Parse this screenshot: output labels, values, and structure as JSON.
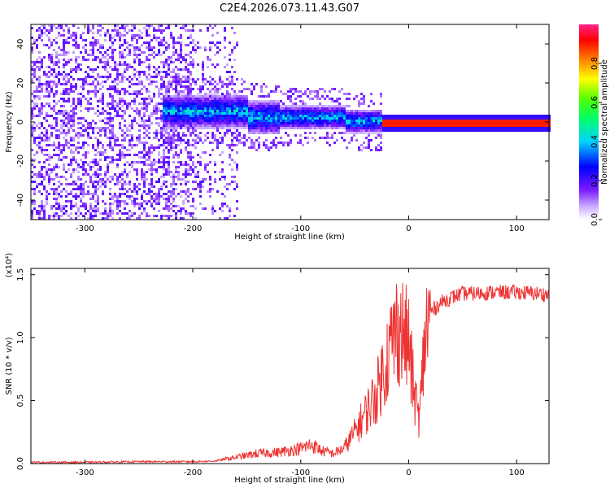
{
  "title": "C2E4.2026.073.11.43.G07",
  "chart_data": [
    {
      "type": "heatmap",
      "name": "spectrogram",
      "xlabel": "Height of straight line (km)",
      "ylabel": "Frequency (Hz)",
      "xlim": [
        -350,
        130
      ],
      "ylim": [
        -50,
        50
      ],
      "xticks": [
        -300,
        -200,
        -100,
        0,
        100
      ],
      "xtick_labels": [
        "-300",
        "-200",
        "-100",
        "0",
        "100"
      ],
      "yticks": [
        -40,
        -20,
        0,
        20,
        40
      ],
      "ytick_labels": [
        "-40",
        "-20",
        "0",
        "20",
        "40"
      ],
      "colorbar": {
        "label": "Normalized spectral amplitude",
        "range": [
          0,
          1
        ],
        "ticks": [
          0.0,
          0.2,
          0.4,
          0.6,
          0.8
        ],
        "tick_labels": [
          "0.0",
          "0.2",
          "0.4",
          "0.6",
          "0.8"
        ]
      },
      "features": {
        "noise_region_km": [
          -350,
          -160
        ],
        "signal_band_center_hz": 0,
        "steady_tone_start_km": -25,
        "steady_tone_amplitude": 0.9
      }
    },
    {
      "type": "line",
      "name": "snr",
      "xlabel": "Height of straight line (km)",
      "ylabel": "SNR (10 * v/v)",
      "scale_label": "(x10⁴)",
      "xlim": [
        -350,
        130
      ],
      "ylim": [
        0,
        1.55
      ],
      "xticks": [
        -300,
        -200,
        -100,
        0,
        100
      ],
      "xtick_labels": [
        "-300",
        "-200",
        "-100",
        "0",
        "100"
      ],
      "yticks": [
        0,
        0.5,
        1.0,
        1.5
      ],
      "ytick_labels": [
        "0.0",
        "0.5",
        "1.0",
        "1.5"
      ],
      "color": "#ee3333",
      "series": [
        {
          "name": "SNR",
          "x": [
            -350,
            -300,
            -250,
            -200,
            -180,
            -160,
            -140,
            -120,
            -100,
            -90,
            -80,
            -70,
            -60,
            -50,
            -40,
            -30,
            -20,
            -10,
            0,
            5,
            10,
            15,
            20,
            30,
            40,
            50,
            60,
            80,
            100,
            120,
            130
          ],
          "y": [
            0.01,
            0.01,
            0.015,
            0.015,
            0.02,
            0.05,
            0.08,
            0.09,
            0.12,
            0.15,
            0.1,
            0.08,
            0.12,
            0.25,
            0.4,
            0.55,
            0.85,
            1.1,
            0.95,
            0.55,
            0.35,
            1.0,
            1.2,
            1.28,
            1.32,
            1.35,
            1.35,
            1.36,
            1.36,
            1.35,
            1.34
          ]
        }
      ]
    }
  ]
}
